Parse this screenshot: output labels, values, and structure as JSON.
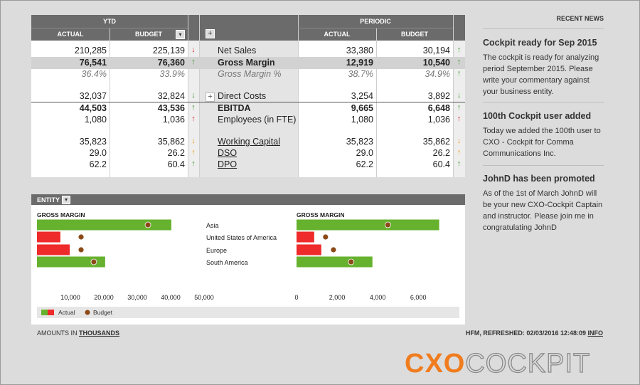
{
  "table": {
    "groups": [
      "YTD",
      "PERIODIC"
    ],
    "columns": [
      "ACTUAL",
      "BUDGET",
      "ACTUAL",
      "BUDGET"
    ],
    "rows": [
      {
        "label": "Net Sales",
        "style": "plain",
        "ytd": [
          "210,285",
          "225,139"
        ],
        "ytd_arrow": {
          "symbol": "↓",
          "color": "#d9262b"
        },
        "periodic": [
          "33,380",
          "30,194"
        ],
        "periodic_arrow": {
          "symbol": "↑",
          "color": "#3a9b2c"
        }
      },
      {
        "label": "Gross Margin",
        "style": "highlight",
        "ytd": [
          "76,541",
          "76,360"
        ],
        "ytd_arrow": {
          "symbol": "↑",
          "color": "#3a9b2c"
        },
        "periodic": [
          "12,919",
          "10,540"
        ],
        "periodic_arrow": {
          "symbol": "↑",
          "color": "#3a9b2c"
        }
      },
      {
        "label": "Gross Margin %",
        "style": "italic",
        "ytd": [
          "36.4%",
          "33.9%"
        ],
        "ytd_arrow": null,
        "periodic": [
          "38.7%",
          "34.9%"
        ],
        "periodic_arrow": {
          "symbol": "↑",
          "color": "#3a9b2c"
        }
      },
      {
        "label": "Direct Costs",
        "style": "plain",
        "ytd": [
          "32,037",
          "32,824"
        ],
        "ytd_arrow": {
          "symbol": "↓",
          "color": "#3a9b2c"
        },
        "periodic": [
          "3,254",
          "3,892"
        ],
        "periodic_arrow": {
          "symbol": "↓",
          "color": "#3a9b2c"
        }
      },
      {
        "label": "EBITDA",
        "style": "total",
        "ytd": [
          "44,503",
          "43,536"
        ],
        "ytd_arrow": {
          "symbol": "↑",
          "color": "#3a9b2c"
        },
        "periodic": [
          "9,665",
          "6,648"
        ],
        "periodic_arrow": {
          "symbol": "↑",
          "color": "#3a9b2c"
        }
      },
      {
        "label": "Employees (in FTE)",
        "style": "plain",
        "ytd": [
          "1,080",
          "1,036"
        ],
        "ytd_arrow": {
          "symbol": "↑",
          "color": "#d9262b"
        },
        "periodic": [
          "1,080",
          "1,036"
        ],
        "periodic_arrow": {
          "symbol": "↑",
          "color": "#d9262b"
        }
      },
      {
        "label": "Working Capital",
        "style": "link",
        "ytd": [
          "35,823",
          "35,862"
        ],
        "ytd_arrow": {
          "symbol": "↓",
          "color": "#f0a020"
        },
        "periodic": [
          "35,823",
          "35,862"
        ],
        "periodic_arrow": {
          "symbol": "↓",
          "color": "#f0a020"
        }
      },
      {
        "label": "DSO",
        "style": "link",
        "ytd": [
          "29.0",
          "26.2"
        ],
        "ytd_arrow": {
          "symbol": "↑",
          "color": "#f0a020"
        },
        "periodic": [
          "29.0",
          "26.2"
        ],
        "periodic_arrow": {
          "symbol": "↑",
          "color": "#f0a020"
        }
      },
      {
        "label": "DPO",
        "style": "link",
        "ytd": [
          "62.2",
          "60.4"
        ],
        "ytd_arrow": {
          "symbol": "↑",
          "color": "#3a9b2c"
        },
        "periodic": [
          "62.2",
          "60.4"
        ],
        "periodic_arrow": {
          "symbol": "↑",
          "color": "#3a9b2c"
        }
      }
    ]
  },
  "entity": {
    "title": "ENTITY"
  },
  "chart_data": [
    {
      "type": "bar",
      "orientation": "horizontal",
      "title": "GROSS MARGIN",
      "categories": [
        "Asia",
        "United States of America",
        "Europe",
        "South America"
      ],
      "series": [
        {
          "name": "Actual",
          "values": [
            40200,
            7000,
            9800,
            20400
          ],
          "colors": [
            "#66b22e",
            "#ee2a2a",
            "#ee2a2a",
            "#66b22e"
          ]
        },
        {
          "name": "Budget",
          "values": [
            33200,
            13200,
            13200,
            17000
          ],
          "color": "#8b4a17"
        }
      ],
      "xlim": [
        0,
        50000
      ],
      "xticks": [
        {
          "value": 10000,
          "label": "10,000"
        },
        {
          "value": 20000,
          "label": "20,000"
        },
        {
          "value": 30000,
          "label": "30,000"
        },
        {
          "value": 40000,
          "label": "40,000"
        },
        {
          "value": 50000,
          "label": "50,000"
        }
      ]
    },
    {
      "type": "bar",
      "orientation": "horizontal",
      "title": "GROSS MARGIN",
      "series": [
        {
          "values": [
            7030,
            870,
            1220,
            3740
          ],
          "colors": [
            "#66b22e",
            "#ee2a2a",
            "#ee2a2a",
            "#66b22e"
          ]
        },
        {
          "values": [
            4500,
            1430,
            1820,
            2690
          ],
          "color": "#8b4a17"
        }
      ],
      "xlim": [
        0,
        7500
      ],
      "xticks": [
        0,
        {
          "value": 2000,
          "label": "2,000"
        },
        {
          "value": 4000,
          "label": "4,000"
        },
        {
          "value": 6000,
          "label": "6,000"
        }
      ]
    }
  ],
  "news": {
    "title": "RECENT NEWS",
    "items": [
      {
        "headline": "Cockpit ready for Sep 2015",
        "body": "The cockpit is ready for analyzing period September 2015. Please write your commentary against your business entity."
      },
      {
        "headline": "100th Cockpit user added",
        "body": "Today we added the 100th user to CXO - Cockpit for Comma Communications Inc."
      },
      {
        "headline": "JohnD has been promoted",
        "body": "As of the 1st of March JohnD will be your new CXO-Cockpit Captain and instructor. Please join me in congratulating JohnD"
      }
    ]
  },
  "footer": {
    "amounts_in": "AMOUNTS IN",
    "unit": "THOUSANDS",
    "refreshed": "HFM, REFRESHED: 02/03/2016 12:48:09",
    "info": "INFO"
  },
  "logo": {
    "cxo": "CXO",
    "cockpit": "COCKPIT"
  }
}
